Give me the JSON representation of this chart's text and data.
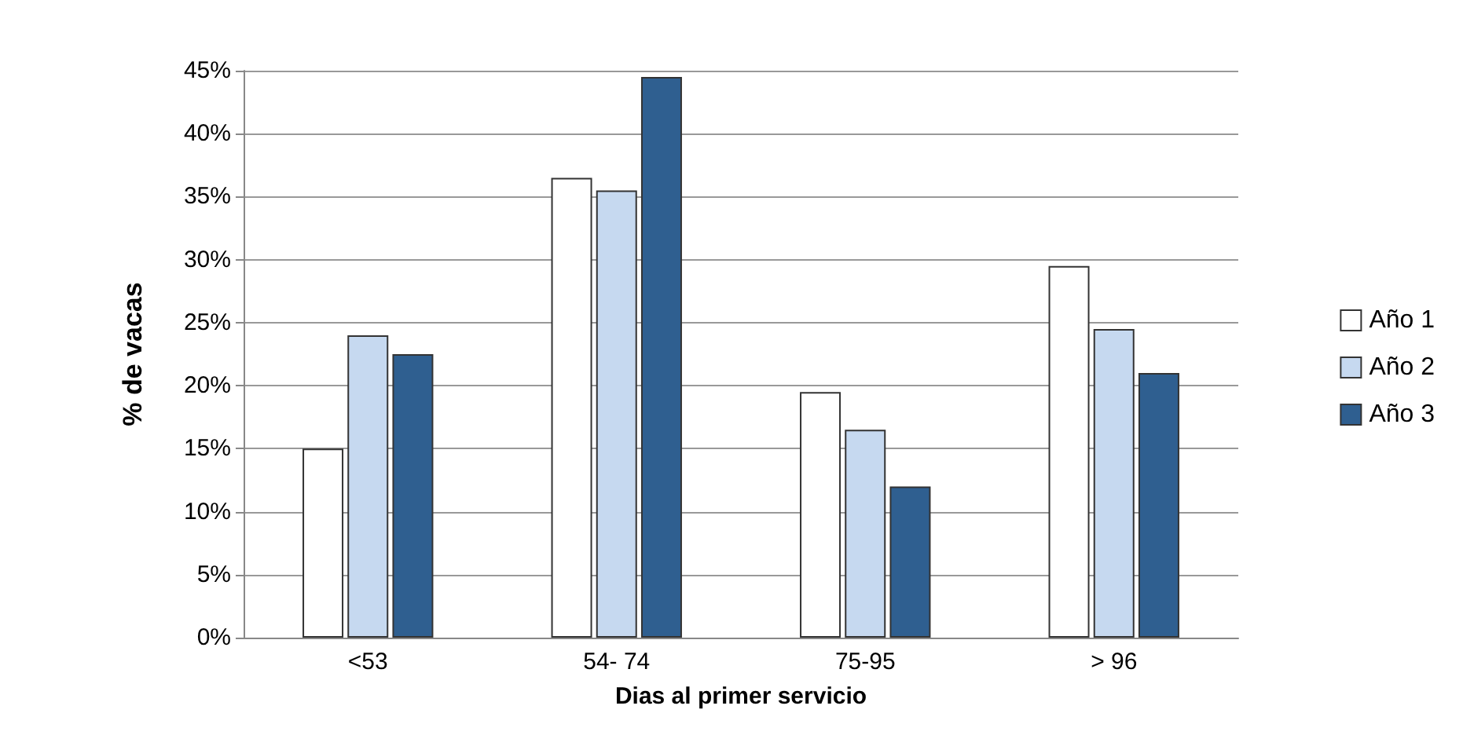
{
  "chart_data": {
    "type": "bar",
    "xlabel": "Dias al primer servicio",
    "ylabel": "% de vacas",
    "categories": [
      "<53",
      "54- 74",
      "75-95",
      "> 96"
    ],
    "series": [
      {
        "name": "Año 1",
        "color": "#ffffff",
        "values": [
          15,
          36.5,
          19.5,
          29.5
        ]
      },
      {
        "name": "Año 2",
        "color": "#c6d9f0",
        "values": [
          24,
          35.5,
          16.5,
          24.5
        ]
      },
      {
        "name": "Año 3",
        "color": "#2f5f90",
        "values": [
          22.5,
          44.5,
          12,
          21
        ]
      }
    ],
    "ylim": [
      0,
      45
    ],
    "yticks": [
      {
        "value": 0,
        "label": "0%"
      },
      {
        "value": 5,
        "label": "5%"
      },
      {
        "value": 10,
        "label": "10%"
      },
      {
        "value": 15,
        "label": "15%"
      },
      {
        "value": 20,
        "label": "20%"
      },
      {
        "value": 25,
        "label": "25%"
      },
      {
        "value": 30,
        "label": "30%"
      },
      {
        "value": 35,
        "label": "35%"
      },
      {
        "value": 40,
        "label": "40%"
      },
      {
        "value": 45,
        "label": "45%"
      }
    ],
    "grid": "y",
    "legend": "right"
  }
}
